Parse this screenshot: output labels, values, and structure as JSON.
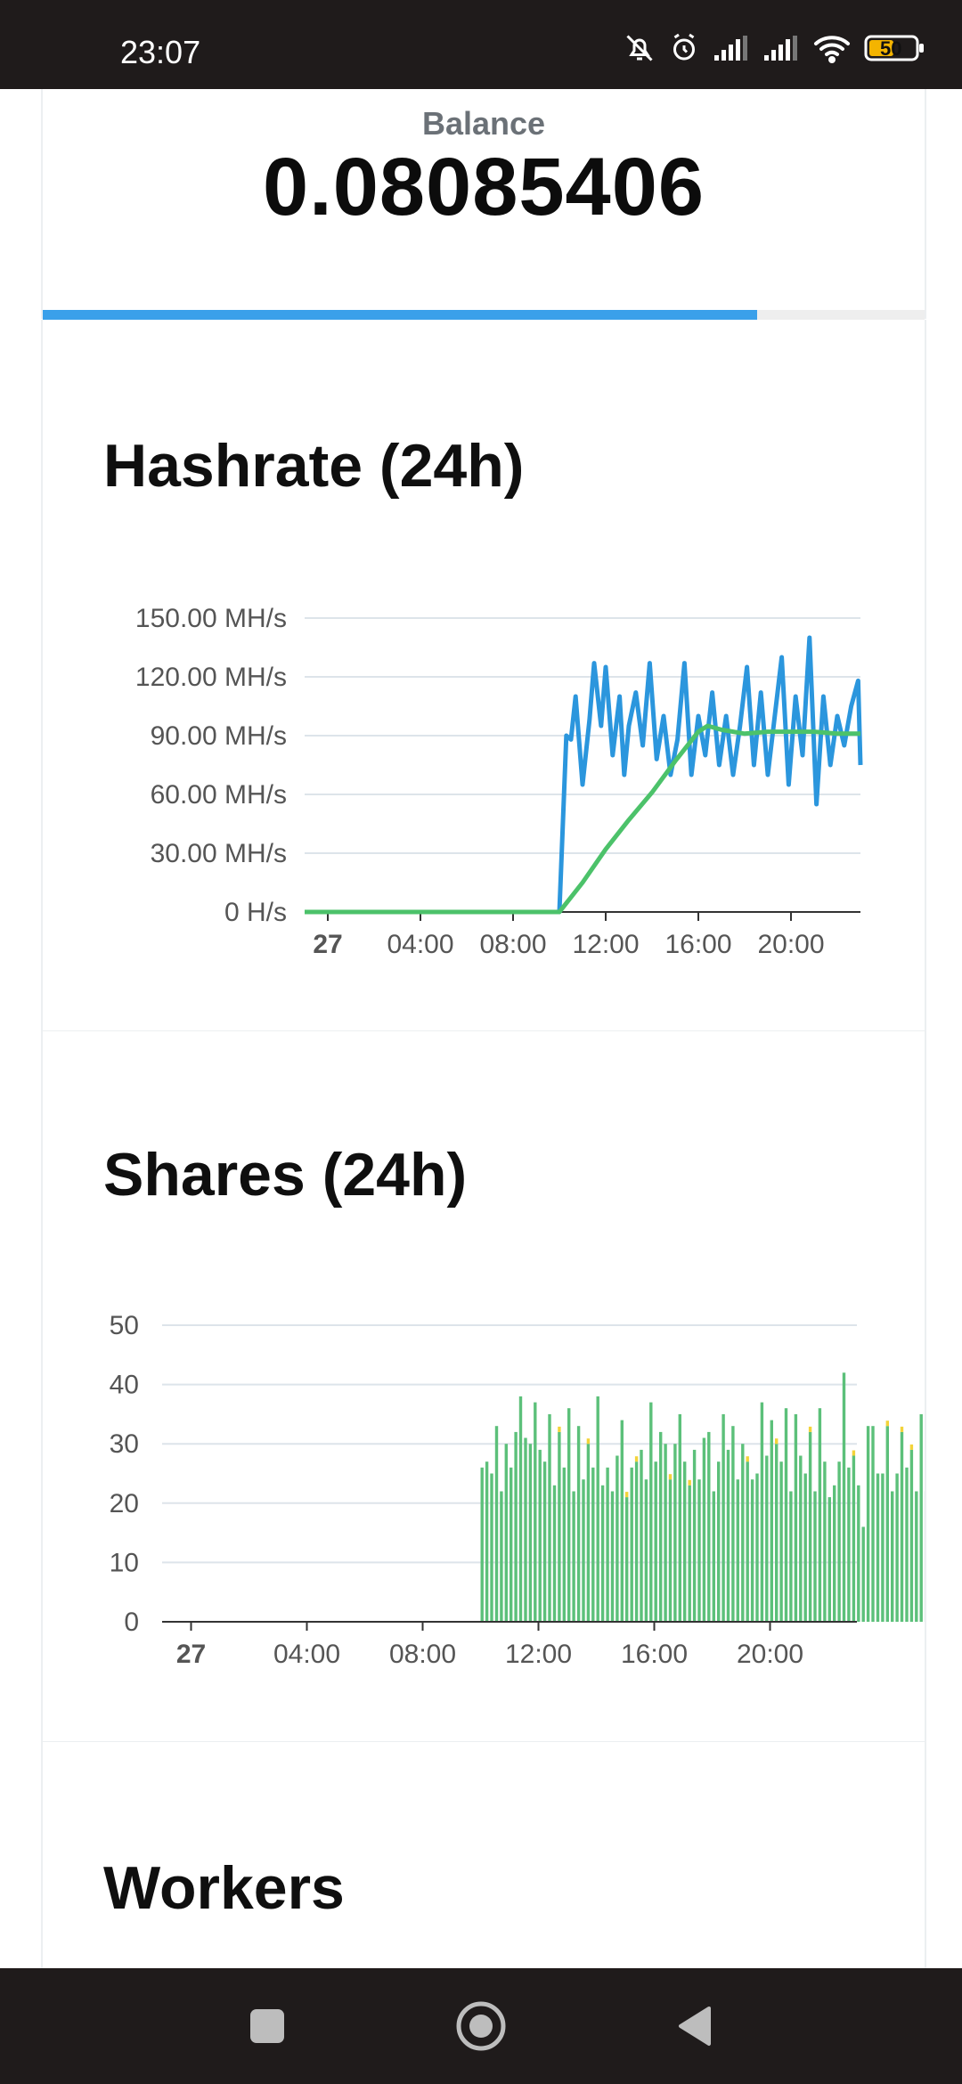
{
  "status_bar": {
    "time": "23:07",
    "icons": [
      "bell-off-icon",
      "alarm-icon",
      "signal-icon",
      "signal-icon",
      "wifi-icon",
      "battery-icon"
    ],
    "battery": "50",
    "battery_color": "#f4b400"
  },
  "balance": {
    "label": "Balance",
    "value": "0.08085406",
    "progress": 0.81,
    "progress_color": "#3aa0ea"
  },
  "hashrate": {
    "title": "Hashrate (24h)"
  },
  "shares": {
    "title": "Shares (24h)"
  },
  "workers": {
    "title": "Workers"
  },
  "nav": {
    "icons": [
      "square-icon",
      "home-circle-icon",
      "back-triangle-icon"
    ]
  },
  "chart_data": [
    {
      "type": "line",
      "title": "",
      "xlabel": "",
      "ylabel": "",
      "ylim": [
        0,
        150
      ],
      "y_ticks": [
        "0 H/s",
        "30.00 MH/s",
        "60.00 MH/s",
        "90.00 MH/s",
        "120.00 MH/s",
        "150.00 MH/s"
      ],
      "x_ticks": [
        "27",
        "04:00",
        "08:00",
        "12:00",
        "16:00",
        "20:00"
      ],
      "x_tick_hours": [
        0,
        4,
        8,
        12,
        16,
        20
      ],
      "xlim_hours": [
        -1,
        23
      ],
      "grid": true,
      "series": [
        {
          "name": "",
          "color": "#2b96dd",
          "x": [
            -1,
            10,
            10.3,
            10.5,
            10.7,
            11.0,
            11.3,
            11.5,
            11.8,
            12.0,
            12.3,
            12.6,
            12.8,
            13.0,
            13.3,
            13.6,
            13.9,
            14.2,
            14.5,
            14.8,
            15.1,
            15.4,
            15.7,
            16.0,
            16.3,
            16.6,
            16.9,
            17.2,
            17.5,
            17.8,
            18.1,
            18.4,
            18.7,
            19.0,
            19.3,
            19.6,
            19.9,
            20.2,
            20.5,
            20.8,
            21.1,
            21.4,
            21.7,
            22.0,
            22.3,
            22.6,
            22.9,
            23.0
          ],
          "values": [
            0,
            0,
            90,
            88,
            110,
            65,
            98,
            127,
            95,
            125,
            80,
            110,
            70,
            95,
            112,
            85,
            127,
            78,
            100,
            70,
            88,
            127,
            70,
            100,
            80,
            112,
            75,
            100,
            70,
            95,
            125,
            75,
            112,
            70,
            100,
            130,
            65,
            110,
            80,
            140,
            55,
            110,
            75,
            100,
            85,
            105,
            118,
            75
          ]
        },
        {
          "name": "",
          "color": "#4cc26a",
          "x": [
            -1,
            10,
            11,
            12,
            13,
            14,
            15,
            16,
            16.4,
            17,
            18,
            19,
            20,
            21,
            22,
            23
          ],
          "values": [
            0,
            0,
            15,
            32,
            47,
            61,
            77,
            92,
            95,
            93,
            91,
            92,
            92,
            92,
            91,
            91
          ]
        }
      ]
    },
    {
      "type": "bar",
      "title": "",
      "xlabel": "",
      "ylabel": "",
      "ylim": [
        0,
        50
      ],
      "y_ticks": [
        "0",
        "10",
        "20",
        "30",
        "40",
        "50"
      ],
      "x_ticks": [
        "27",
        "04:00",
        "08:00",
        "12:00",
        "16:00",
        "20:00"
      ],
      "x_tick_hours": [
        0,
        4,
        8,
        12,
        16,
        20
      ],
      "xlim_hours": [
        -1,
        23
      ],
      "grid": true,
      "bar_color": "#5cc07a",
      "bar_top_color": "#f3d33a",
      "start_hour": 10.0,
      "bar_step_hours": 0.1667,
      "values": [
        26,
        27,
        25,
        33,
        22,
        30,
        26,
        32,
        38,
        31,
        30,
        37,
        29,
        27,
        35,
        23,
        32,
        26,
        36,
        22,
        33,
        24,
        30,
        26,
        38,
        23,
        26,
        22,
        28,
        34,
        21,
        26,
        27,
        29,
        24,
        37,
        27,
        32,
        30,
        24,
        30,
        35,
        27,
        23,
        29,
        24,
        31,
        32,
        22,
        27,
        35,
        29,
        33,
        24,
        30,
        27,
        24,
        25,
        37,
        28,
        34,
        30,
        27,
        36,
        22,
        35,
        28,
        25,
        32,
        22,
        36,
        27,
        21,
        23,
        27,
        42,
        26,
        28,
        23,
        16,
        33,
        33,
        25,
        25,
        33,
        22,
        25,
        32,
        26,
        29,
        22,
        35,
        22
      ],
      "overlay": [
        0,
        0,
        0,
        0,
        0,
        0,
        0,
        0,
        0,
        0,
        0,
        0,
        0,
        0,
        0,
        0,
        1,
        0,
        0,
        0,
        0,
        0,
        1,
        0,
        0,
        0,
        0,
        0,
        0,
        0,
        1,
        0,
        1,
        0,
        0,
        0,
        0,
        0,
        0,
        1,
        0,
        0,
        0,
        1,
        0,
        0,
        0,
        0,
        0,
        0,
        0,
        0,
        0,
        0,
        0,
        1,
        0,
        0,
        0,
        0,
        0,
        1,
        0,
        0,
        0,
        0,
        0,
        0,
        1,
        0,
        0,
        0,
        0,
        0,
        0,
        0,
        0,
        1,
        0,
        0,
        0,
        0,
        0,
        0,
        1,
        0,
        0,
        1,
        0,
        1,
        0,
        0,
        0
      ]
    }
  ]
}
